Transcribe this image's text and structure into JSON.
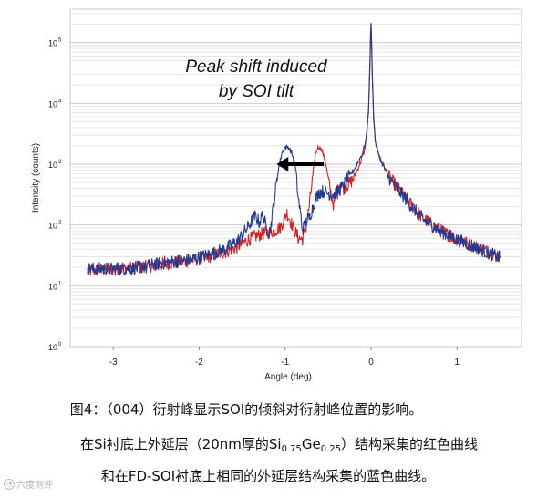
{
  "chart_data": {
    "type": "line",
    "xlabel": "Angle (deg)",
    "ylabel": "Intensity (counts)",
    "xlim": [
      -3.5,
      1.75
    ],
    "ylim_log10": [
      0,
      5.55
    ],
    "y_scale": "log",
    "x_ticks": [
      "-3",
      "-2",
      "-1",
      "0",
      "1"
    ],
    "x_tick_values": [
      -3,
      -2,
      -1,
      0,
      1
    ],
    "y_ticks": [
      "10",
      "10",
      "10",
      "10",
      "10",
      "10"
    ],
    "y_tick_exponents": [
      "0",
      "1",
      "2",
      "3",
      "4",
      "5"
    ],
    "grid": "horizontal",
    "annotation": {
      "line1": "Peak shift induced",
      "line2": "by SOI tilt",
      "arrow_from_x": -0.55,
      "arrow_to_x": -1.1,
      "arrow_y": 1000
    },
    "series": [
      {
        "color": "#d42020",
        "x": [
          -3.3,
          -3.0,
          -2.7,
          -2.4,
          -2.1,
          -1.9,
          -1.7,
          -1.55,
          -1.45,
          -1.35,
          -1.28,
          -1.2,
          -1.12,
          -1.05,
          -0.98,
          -0.93,
          -0.88,
          -0.84,
          -0.8,
          -0.76,
          -0.72,
          -0.68,
          -0.65,
          -0.62,
          -0.58,
          -0.53,
          -0.48,
          -0.44,
          -0.4,
          -0.36,
          -0.32,
          -0.28,
          -0.24,
          -0.2,
          -0.16,
          -0.12,
          -0.08,
          -0.05,
          -0.03,
          -0.015,
          -0.005,
          0.0,
          0.005,
          0.015,
          0.03,
          0.05,
          0.08,
          0.12,
          0.2,
          0.3,
          0.45,
          0.6,
          0.8,
          1.0,
          1.2,
          1.4,
          1.5
        ],
        "y": [
          18,
          19,
          20,
          23,
          26,
          30,
          36,
          44,
          55,
          65,
          70,
          75,
          80,
          92,
          160,
          110,
          75,
          60,
          58,
          85,
          200,
          600,
          1400,
          1900,
          1800,
          1100,
          400,
          220,
          300,
          500,
          400,
          450,
          500,
          600,
          800,
          1100,
          1600,
          2800,
          8000,
          40000,
          150000,
          200000,
          120000,
          30000,
          6000,
          2400,
          1600,
          1150,
          650,
          420,
          230,
          130,
          82,
          58,
          45,
          34,
          30
        ]
      },
      {
        "color": "#1f3c94",
        "x": [
          -3.3,
          -3.0,
          -2.7,
          -2.4,
          -2.1,
          -1.9,
          -1.7,
          -1.55,
          -1.45,
          -1.35,
          -1.3,
          -1.26,
          -1.22,
          -1.18,
          -1.12,
          -1.08,
          -1.04,
          -1.0,
          -0.96,
          -0.92,
          -0.88,
          -0.85,
          -0.82,
          -0.8,
          -0.78,
          -0.75,
          -0.72,
          -0.68,
          -0.64,
          -0.6,
          -0.55,
          -0.5,
          -0.45,
          -0.4,
          -0.35,
          -0.3,
          -0.25,
          -0.2,
          -0.15,
          -0.1,
          -0.06,
          -0.03,
          -0.015,
          -0.005,
          0.0,
          0.005,
          0.015,
          0.03,
          0.05,
          0.08,
          0.12,
          0.2,
          0.3,
          0.45,
          0.6,
          0.8,
          1.0,
          1.2,
          1.4,
          1.5
        ],
        "y": [
          19,
          19,
          20,
          24,
          27,
          32,
          40,
          55,
          85,
          140,
          110,
          150,
          90,
          70,
          300,
          800,
          1500,
          1900,
          1900,
          1500,
          900,
          300,
          150,
          85,
          95,
          120,
          130,
          190,
          280,
          350,
          360,
          330,
          320,
          340,
          400,
          500,
          650,
          800,
          1100,
          1500,
          2500,
          7000,
          30000,
          130000,
          200000,
          100000,
          25000,
          5500,
          2300,
          1500,
          1100,
          620,
          400,
          220,
          125,
          80,
          57,
          44,
          33,
          29
        ]
      }
    ]
  },
  "caption": {
    "line1": "图4：（004）衍射峰显示SOI的倾斜对衍射峰位置的影响。",
    "line2_a": "在Si衬底上外延层（20nm厚的Si",
    "line2_sub1": "0.75",
    "line2_b": "Ge",
    "line2_sub2": "0.25",
    "line2_c": "）结构采集的红色曲线",
    "line3": "和在FD-SOI衬底上相同的外延层结构采集的蓝色曲线。"
  },
  "watermark": "六度测评"
}
